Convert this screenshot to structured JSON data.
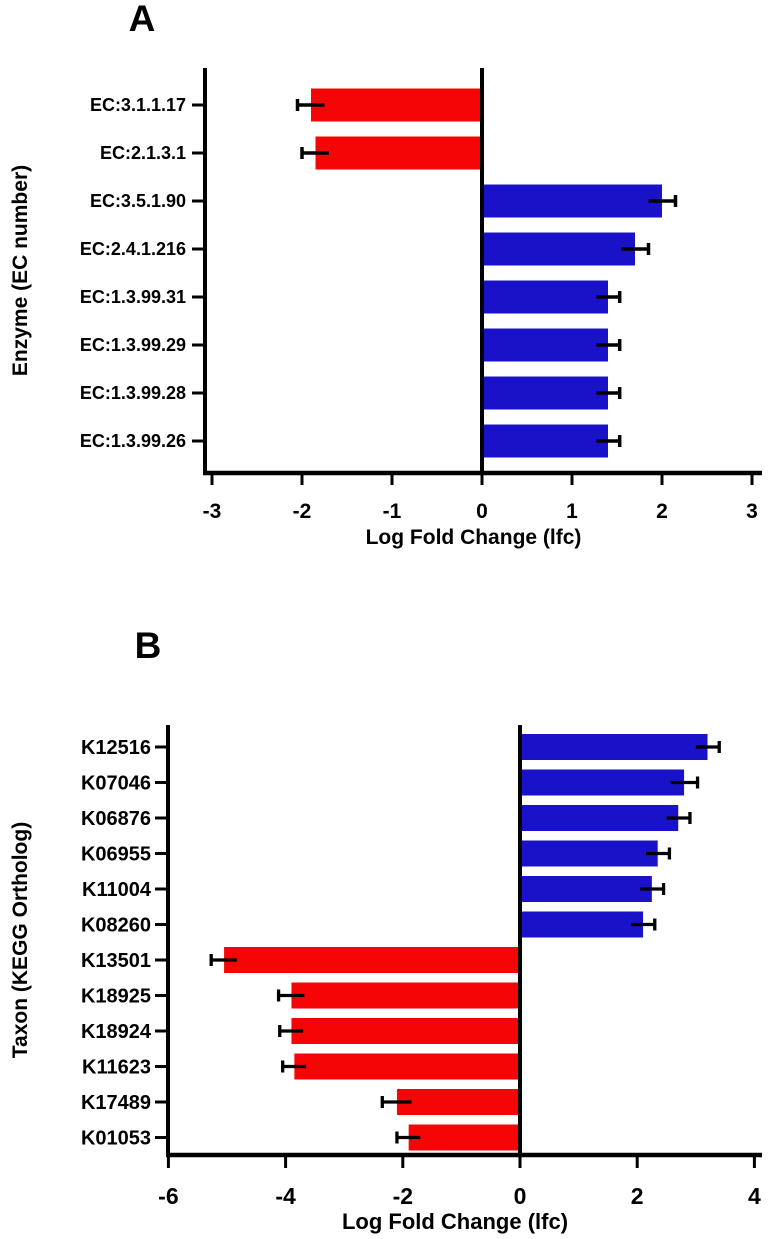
{
  "figure": {
    "background": "#ffffff",
    "description_panels": [
      "A",
      "B"
    ]
  },
  "colors": {
    "positive_bar": "#1a12c9",
    "negative_bar": "#f50505",
    "axis": "#000000",
    "text": "#000000"
  },
  "chart_data": [
    {
      "type": "bar",
      "orientation": "horizontal",
      "panel_label": "A",
      "xlabel": "Log Fold Change (lfc)",
      "ylabel": "Enzyme (EC number)",
      "xlim": [
        -3,
        3
      ],
      "xticks": [
        -3,
        -2,
        -1,
        0,
        1,
        2,
        3
      ],
      "grid": false,
      "legend": "none",
      "categories": [
        "EC:3.1.1.17",
        "EC:2.1.3.1",
        "EC:3.5.1.90",
        "EC:2.4.1.216",
        "EC:1.3.99.31",
        "EC:1.3.99.29",
        "EC:1.3.99.28",
        "EC:1.3.99.26"
      ],
      "values": [
        -1.9,
        -1.85,
        2.0,
        1.7,
        1.4,
        1.4,
        1.4,
        1.4
      ],
      "errors": [
        0.15,
        0.15,
        0.15,
        0.15,
        0.13,
        0.13,
        0.13,
        0.13
      ]
    },
    {
      "type": "bar",
      "orientation": "horizontal",
      "panel_label": "B",
      "xlabel": "Log Fold Change (lfc)",
      "ylabel": "Taxon (KEGG Ortholog)",
      "xlim": [
        -6,
        4
      ],
      "xticks": [
        -6,
        -4,
        -2,
        0,
        2,
        4
      ],
      "grid": false,
      "legend": "none",
      "categories": [
        "K12516",
        "K07046",
        "K06876",
        "K06955",
        "K11004",
        "K08260",
        "K13501",
        "K18925",
        "K18924",
        "K11623",
        "K17489",
        "K01053"
      ],
      "values": [
        3.2,
        2.8,
        2.7,
        2.35,
        2.25,
        2.1,
        -5.05,
        -3.9,
        -3.9,
        -3.85,
        -2.1,
        -1.9
      ],
      "errors": [
        0.2,
        0.23,
        0.2,
        0.2,
        0.2,
        0.2,
        0.22,
        0.22,
        0.2,
        0.2,
        0.25,
        0.2
      ]
    }
  ]
}
